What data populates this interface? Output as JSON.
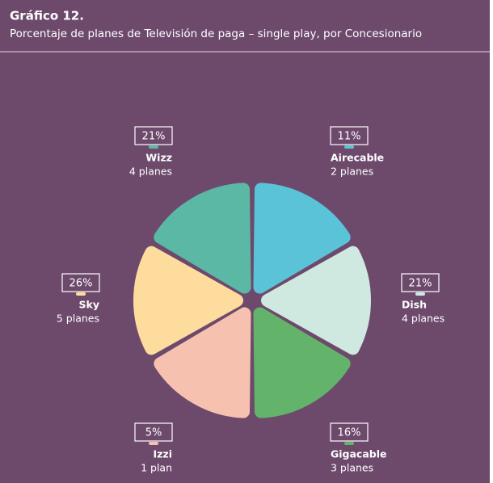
{
  "chart_data": {
    "type": "pie",
    "title": "Gráfico 12.",
    "subtitle": "Porcentaje de planes de Televisión de paga – single play, por Concesionario",
    "categories": [
      "Airecable",
      "Dish",
      "Gigacable",
      "Izzi",
      "Sky",
      "Wizz"
    ],
    "values": [
      11,
      21,
      16,
      5,
      26,
      21
    ],
    "value_labels": [
      "11%",
      "21%",
      "16%",
      "5%",
      "26%",
      "21%"
    ],
    "sublabels": [
      "2 planes",
      "4 planes",
      "3 planes",
      "1 plan",
      "5 planes",
      "4 planes"
    ],
    "colors": [
      "#5bc3d8",
      "#cfe8e0",
      "#63b46a",
      "#f7c1b0",
      "#fddc9e",
      "#5bb8a5"
    ]
  }
}
